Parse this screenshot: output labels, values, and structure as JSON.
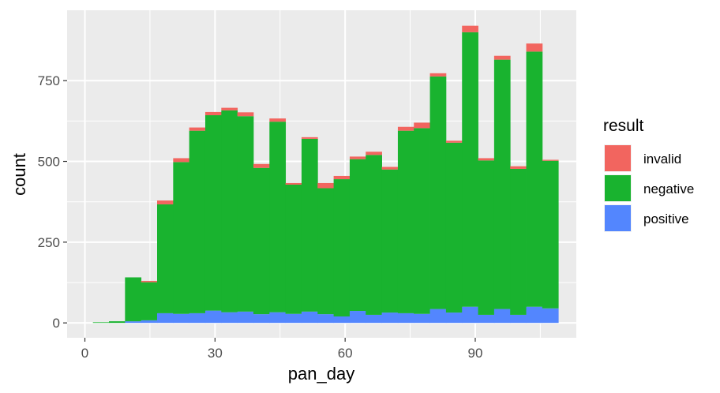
{
  "chart_data": {
    "type": "bar",
    "stacked": true,
    "histogram": true,
    "bin_width": 3.7,
    "xlabel": "pan_day",
    "ylabel": "count",
    "xlim": [
      -4.1,
      113.3
    ],
    "ylim": [
      -46,
      968
    ],
    "xticks": [
      0,
      30,
      60,
      90
    ],
    "yticks": [
      0,
      250,
      500,
      750
    ],
    "grid": true,
    "legend": {
      "title": "result",
      "position": "right"
    },
    "bin_starts": [
      1.85,
      5.55,
      9.25,
      12.95,
      16.65,
      20.35,
      24.05,
      27.75,
      31.45,
      35.15,
      38.85,
      42.55,
      46.25,
      49.95,
      53.65,
      57.35,
      61.05,
      64.75,
      68.45,
      72.15,
      75.85,
      79.55,
      83.25,
      86.95,
      90.65,
      94.35,
      98.05,
      101.75,
      105.45
    ],
    "series": [
      {
        "name": "positive",
        "color": "#5386fe",
        "values": [
          0,
          0,
          5,
          8,
          30,
          28,
          30,
          38,
          33,
          35,
          27,
          33,
          28,
          35,
          27,
          20,
          37,
          25,
          32,
          30,
          28,
          43,
          32,
          50,
          25,
          43,
          25,
          50,
          45
        ]
      },
      {
        "name": "negative",
        "color": "#19b32f",
        "values": [
          2,
          5,
          136,
          118,
          337,
          470,
          565,
          605,
          625,
          605,
          453,
          590,
          400,
          535,
          390,
          425,
          470,
          495,
          443,
          565,
          575,
          720,
          526,
          850,
          478,
          772,
          452,
          790,
          457
        ]
      },
      {
        "name": "invalid",
        "color": "#f2655f",
        "values": [
          0,
          0,
          0,
          4,
          12,
          12,
          10,
          10,
          8,
          12,
          12,
          10,
          5,
          5,
          16,
          10,
          8,
          10,
          8,
          12,
          17,
          10,
          6,
          20,
          7,
          12,
          8,
          25,
          3
        ]
      }
    ]
  }
}
